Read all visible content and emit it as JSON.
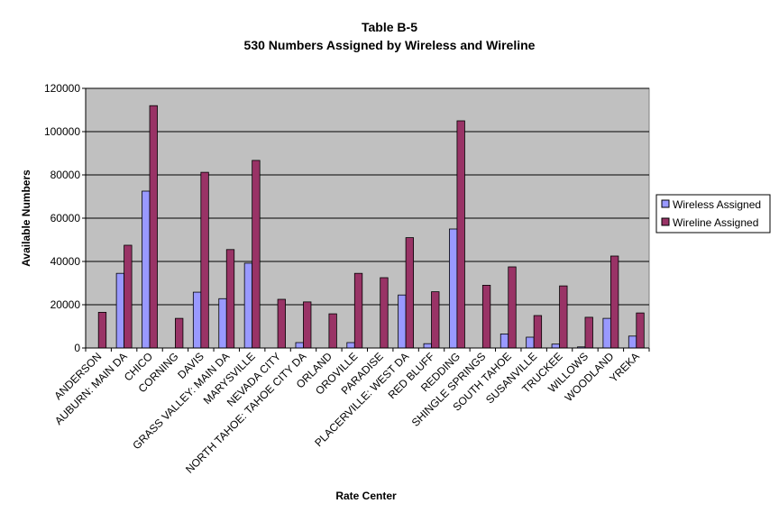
{
  "chart_data": {
    "type": "bar",
    "title": "Table B-5",
    "subtitle": "530 Numbers Assigned by Wireless and Wireline",
    "xlabel": "Rate Center",
    "ylabel": "Available Numbers",
    "ylim": [
      0,
      120000
    ],
    "yticks": [
      0,
      20000,
      40000,
      60000,
      80000,
      100000,
      120000
    ],
    "grid": true,
    "legend_position": "right",
    "plot_background": "#c0c0c0",
    "categories": [
      "ANDERSON",
      "AUBURN: MAIN DA",
      "CHICO",
      "CORNING",
      "DAVIS",
      "GRASS VALLEY: MAIN DA",
      "MARYSVILLE",
      "NEVADA CITY",
      "NORTH TAHOE: TAHOE CITY DA",
      "ORLAND",
      "OROVILLE",
      "PARADISE",
      "PLACERVILLE: WEST DA",
      "RED BLUFF",
      "REDDING",
      "SHINGLE SPRINGS",
      "SOUTH TAHOE",
      "SUSANVILLE",
      "TRUCKEE",
      "WILLOWS",
      "WOODLAND",
      "YREKA"
    ],
    "series": [
      {
        "name": "Wireless Assigned",
        "color": "#9999ff",
        "values": [
          0,
          34500,
          72500,
          0,
          25800,
          22800,
          39200,
          0,
          2500,
          0,
          2500,
          0,
          24500,
          2000,
          55000,
          0,
          6500,
          5000,
          1800,
          500,
          13700,
          5500
        ]
      },
      {
        "name": "Wireline Assigned",
        "color": "#993366",
        "values": [
          16500,
          47500,
          112000,
          13700,
          81200,
          45500,
          86700,
          22500,
          21300,
          15800,
          34500,
          32500,
          51000,
          26000,
          105000,
          29000,
          37500,
          15000,
          28700,
          14200,
          42500,
          16200
        ]
      }
    ]
  }
}
